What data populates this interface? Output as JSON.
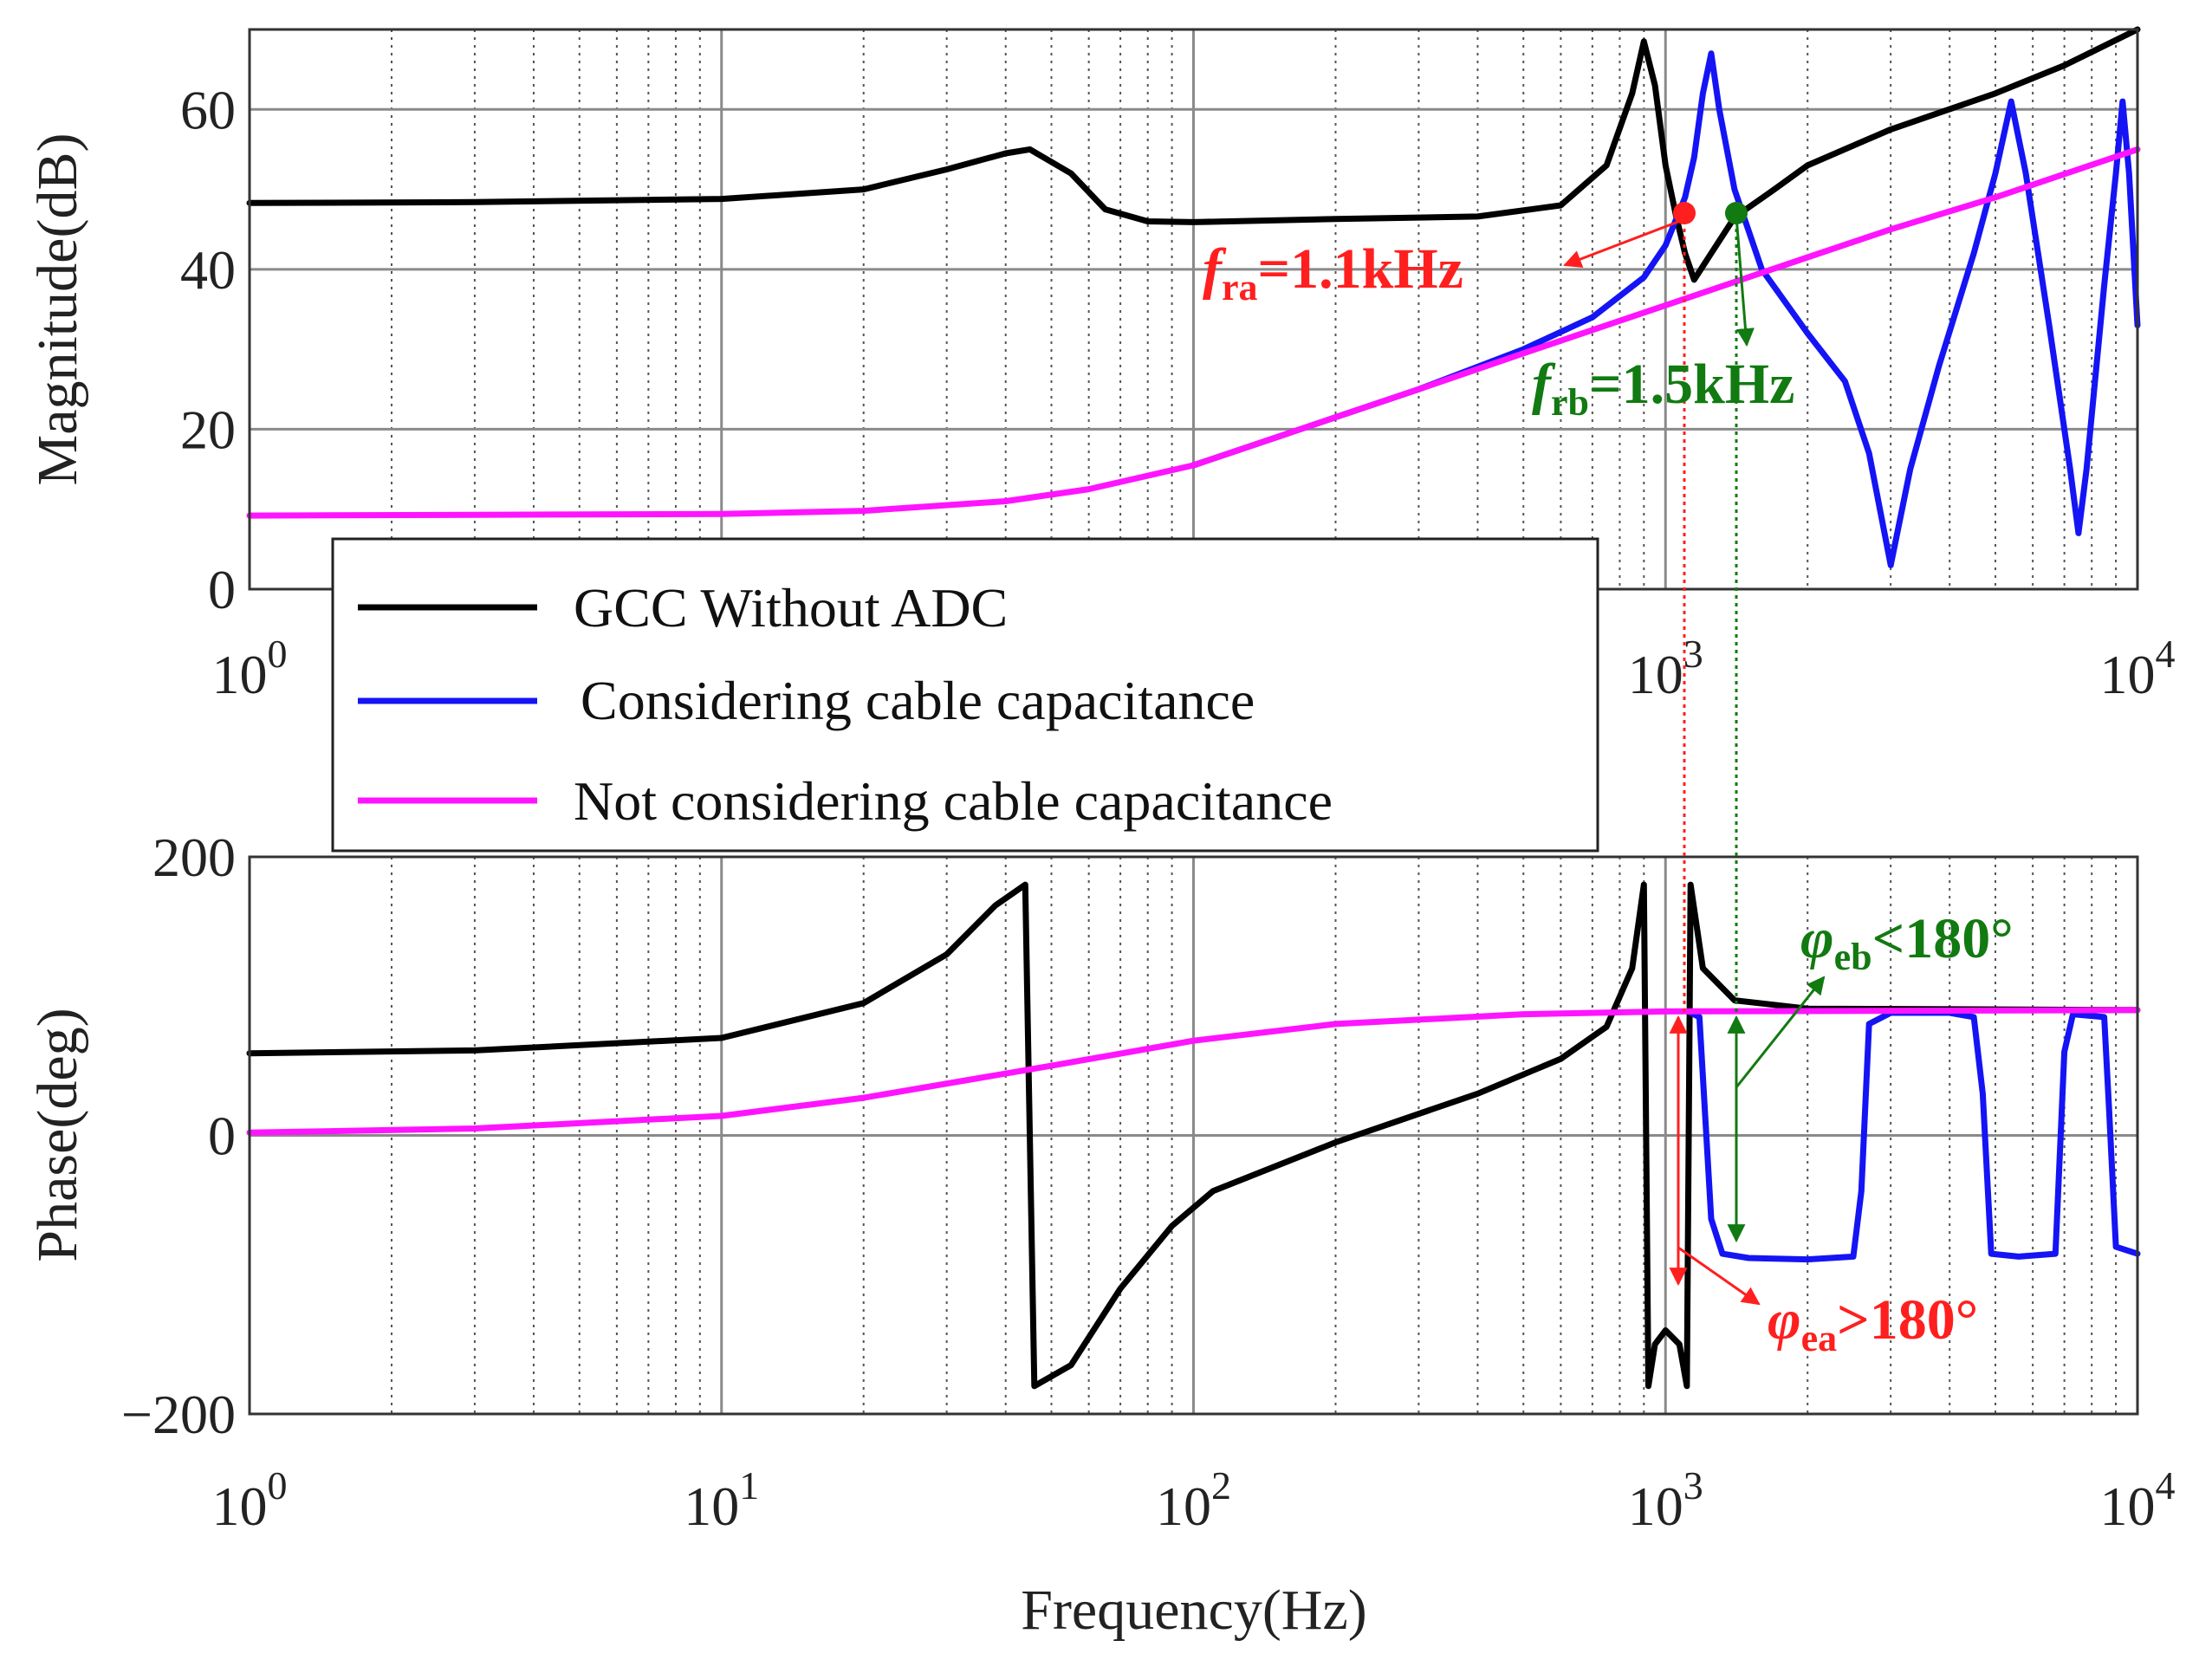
{
  "chart_data": {
    "type": "line",
    "title": "",
    "x_scale": "log",
    "xlabel": "Frequency(Hz)",
    "xlim": [
      1,
      10000
    ],
    "x_tick_labels": [
      {
        "base": "10",
        "exp": "0"
      },
      {
        "base": "10",
        "exp": "1"
      },
      {
        "base": "10",
        "exp": "2"
      },
      {
        "base": "10",
        "exp": "3"
      },
      {
        "base": "10",
        "exp": "4"
      }
    ],
    "magnitude": {
      "ylabel": "Magnitude(dB)",
      "ylim": [
        0,
        70
      ],
      "y_ticks": [
        "0",
        "20",
        "40",
        "60"
      ],
      "upper_x_tick_labels_visible": [
        {
          "base": "10",
          "exp": "0"
        },
        {
          "base": "10",
          "exp": "3"
        },
        {
          "base": "10",
          "exp": "4"
        }
      ],
      "series": [
        {
          "name": "GCC Without ADC",
          "color": "#000000",
          "points": [
            [
              1,
              48.3
            ],
            [
              3,
              48.4
            ],
            [
              10,
              48.8
            ],
            [
              20,
              50
            ],
            [
              30,
              52.5
            ],
            [
              40,
              54.5
            ],
            [
              45,
              55
            ],
            [
              55,
              52
            ],
            [
              65,
              47.5
            ],
            [
              80,
              46
            ],
            [
              100,
              45.9
            ],
            [
              200,
              46.3
            ],
            [
              400,
              46.6
            ],
            [
              600,
              48
            ],
            [
              750,
              53
            ],
            [
              850,
              62
            ],
            [
              900,
              68.5
            ],
            [
              950,
              63
            ],
            [
              1000,
              53
            ],
            [
              1050,
              47
            ],
            [
              1100,
              42
            ],
            [
              1150,
              38.7
            ],
            [
              1250,
              42
            ],
            [
              1400,
              46.5
            ],
            [
              1700,
              50
            ],
            [
              2000,
              53
            ],
            [
              3000,
              57.5
            ],
            [
              5000,
              62
            ],
            [
              7000,
              65.5
            ],
            [
              10000,
              70
            ]
          ]
        },
        {
          "name": "Considering cable capacitance",
          "color": "#1414f5",
          "points": [
            [
              100,
              15.5
            ],
            [
              150,
              19
            ],
            [
              200,
              21.5
            ],
            [
              300,
              25
            ],
            [
              500,
              30
            ],
            [
              700,
              34
            ],
            [
              900,
              39
            ],
            [
              1000,
              43
            ],
            [
              1100,
              49
            ],
            [
              1150,
              54
            ],
            [
              1200,
              62
            ],
            [
              1250,
              67
            ],
            [
              1300,
              60
            ],
            [
              1400,
              50
            ],
            [
              1600,
              40
            ],
            [
              2000,
              32
            ],
            [
              2400,
              26
            ],
            [
              2700,
              17
            ],
            [
              3000,
              3
            ],
            [
              3300,
              15
            ],
            [
              3800,
              28
            ],
            [
              4500,
              42
            ],
            [
              5000,
              52
            ],
            [
              5400,
              61
            ],
            [
              5800,
              52
            ],
            [
              6500,
              33
            ],
            [
              7200,
              15
            ],
            [
              7500,
              7
            ],
            [
              7800,
              15
            ],
            [
              8500,
              38
            ],
            [
              9000,
              52
            ],
            [
              9300,
              61
            ],
            [
              9600,
              52
            ],
            [
              10000,
              33
            ]
          ]
        },
        {
          "name": "Not considering cable capacitance",
          "color": "#ff14ff",
          "points": [
            [
              1,
              9.2
            ],
            [
              3,
              9.3
            ],
            [
              10,
              9.4
            ],
            [
              20,
              9.8
            ],
            [
              40,
              11
            ],
            [
              60,
              12.5
            ],
            [
              100,
              15.5
            ],
            [
              150,
              19
            ],
            [
              200,
              21.5
            ],
            [
              300,
              25
            ],
            [
              500,
              29.5
            ],
            [
              1000,
              35.5
            ],
            [
              2000,
              41.5
            ],
            [
              3000,
              45
            ],
            [
              5000,
              49
            ],
            [
              10000,
              55
            ]
          ]
        }
      ],
      "annotations": [
        {
          "label": "f",
          "sub": "ra",
          "text": "=1.1kHz",
          "x": 1050,
          "y": 47,
          "color": "#ff1f1f"
        },
        {
          "label": "f",
          "sub": "rb",
          "text": "=1.5kHz",
          "x": 1500,
          "y": 47,
          "color": "#117a11"
        }
      ]
    },
    "phase": {
      "ylabel": "Phase(deg)",
      "ylim": [
        -200,
        200
      ],
      "y_ticks": [
        "−200",
        "0",
        "200"
      ],
      "series": [
        {
          "name": "GCC Without ADC",
          "color": "#000000",
          "points": [
            [
              1,
              59
            ],
            [
              3,
              61
            ],
            [
              10,
              70
            ],
            [
              20,
              95
            ],
            [
              30,
              130
            ],
            [
              38,
              165
            ],
            [
              44,
              180
            ],
            [
              46,
              -180
            ],
            [
              55,
              -165
            ],
            [
              70,
              -110
            ],
            [
              90,
              -65
            ],
            [
              110,
              -40
            ],
            [
              200,
              -5
            ],
            [
              400,
              30
            ],
            [
              600,
              55
            ],
            [
              750,
              78
            ],
            [
              850,
              120
            ],
            [
              900,
              180
            ],
            [
              920,
              -180
            ],
            [
              950,
              -150
            ],
            [
              1000,
              -140
            ],
            [
              1070,
              -150
            ],
            [
              1110,
              -180
            ],
            [
              1130,
              180
            ],
            [
              1200,
              120
            ],
            [
              1400,
              97
            ],
            [
              2000,
              91
            ],
            [
              10000,
              90
            ]
          ]
        },
        {
          "name": "Considering cable capacitance",
          "color": "#1414f5",
          "points": [
            [
              1130,
              88
            ],
            [
              1180,
              85
            ],
            [
              1250,
              -60
            ],
            [
              1320,
              -85
            ],
            [
              1500,
              -88
            ],
            [
              2000,
              -89
            ],
            [
              2500,
              -87
            ],
            [
              2600,
              -40
            ],
            [
              2700,
              80
            ],
            [
              3000,
              88
            ],
            [
              4000,
              88
            ],
            [
              4500,
              85
            ],
            [
              4700,
              30
            ],
            [
              4900,
              -85
            ],
            [
              5600,
              -87
            ],
            [
              6700,
              -85
            ],
            [
              7000,
              60
            ],
            [
              7300,
              87
            ],
            [
              8500,
              85
            ],
            [
              8700,
              20
            ],
            [
              9000,
              -80
            ],
            [
              10000,
              -85
            ]
          ]
        },
        {
          "name": "Not considering cable capacitance",
          "color": "#ff14ff",
          "points": [
            [
              1,
              2
            ],
            [
              3,
              5
            ],
            [
              10,
              14
            ],
            [
              20,
              27
            ],
            [
              50,
              50
            ],
            [
              100,
              68
            ],
            [
              200,
              80
            ],
            [
              500,
              87
            ],
            [
              1000,
              89
            ],
            [
              10000,
              90
            ]
          ]
        }
      ],
      "annotations": [
        {
          "label": "φ",
          "sub": "eb",
          "text": "<180°",
          "color": "#117a11"
        },
        {
          "label": "φ",
          "sub": "ea",
          "text": ">180°",
          "color": "#ff1f1f"
        }
      ]
    },
    "legend": {
      "placement": "upper-left overlapping both panels",
      "entries": [
        {
          "label": "GCC Without ADC",
          "color": "#000000"
        },
        {
          "label": "Considering cable capacitance",
          "color": "#1414f5"
        },
        {
          "label": "Not considering cable capacitance",
          "color": "#ff14ff"
        }
      ]
    },
    "grid": true
  }
}
